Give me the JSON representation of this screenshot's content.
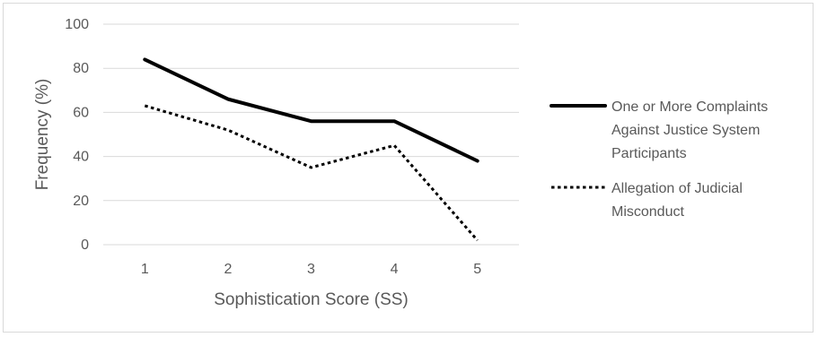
{
  "chart_data": {
    "type": "line",
    "title": "",
    "xlabel": "Sophistication Score (SS)",
    "ylabel": "Frequency (%)",
    "categories": [
      "1",
      "2",
      "3",
      "4",
      "5"
    ],
    "yticks": [
      "0",
      "20",
      "40",
      "60",
      "80",
      "100"
    ],
    "ylim": [
      0,
      100
    ],
    "grid": true,
    "legend_position": "right",
    "series": [
      {
        "name": "One or More Complaints Against Justice System Participants",
        "name_lines": [
          "One or More Complaints",
          "Against Justice System",
          "Participants"
        ],
        "values": [
          84,
          66,
          56,
          56,
          38
        ],
        "style": "solid",
        "color": "#000000"
      },
      {
        "name": "Allegation of Judicial Misconduct",
        "name_lines": [
          "Allegation of Judicial",
          "Misconduct"
        ],
        "values": [
          63,
          52,
          35,
          45,
          2
        ],
        "style": "dotted",
        "color": "#000000"
      }
    ]
  }
}
